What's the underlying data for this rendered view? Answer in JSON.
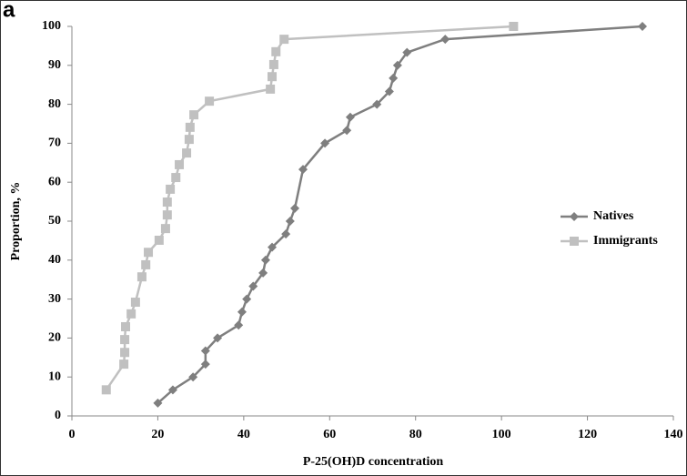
{
  "chart_data": {
    "type": "line",
    "panel_label": "a",
    "x_label": "P-25(OH)D  concentration",
    "y_label": "Proportion, %",
    "xlim": [
      0,
      140
    ],
    "xticks": [
      0,
      20,
      40,
      60,
      80,
      100,
      120,
      140
    ],
    "ylim": [
      0,
      100
    ],
    "yticks": [
      0,
      10,
      20,
      30,
      40,
      50,
      60,
      70,
      80,
      90,
      100
    ],
    "legend": "right",
    "series": [
      {
        "name": "Natives",
        "color": "#7f7f7f",
        "marker": "diamond",
        "x": [
          20,
          23.5,
          28.2,
          31.1,
          31.1,
          33.9,
          38.8,
          39.6,
          40.7,
          42.2,
          44.5,
          45.1,
          46.6,
          49.8,
          50.8,
          51.9,
          53.8,
          58.9,
          64,
          64.8,
          71,
          73.9,
          74.8,
          75.8,
          78,
          86.9,
          132.8
        ],
        "values": [
          3.3,
          6.7,
          10,
          13.3,
          16.7,
          20,
          23.3,
          26.7,
          30,
          33.3,
          36.7,
          40,
          43.3,
          46.7,
          50,
          53.3,
          63.3,
          70,
          73.3,
          76.7,
          80,
          83.3,
          86.7,
          90,
          93.3,
          96.7,
          100
        ]
      },
      {
        "name": "Immigrants",
        "color": "#c0c0c0",
        "marker": "square",
        "x": [
          8,
          12.1,
          12.3,
          12.3,
          12.5,
          13.8,
          14.8,
          16.3,
          17.2,
          17.8,
          20.3,
          21.8,
          22.2,
          22.2,
          22.9,
          24.2,
          25,
          26.7,
          27.3,
          27.5,
          28.4,
          32,
          46.2,
          46.6,
          47,
          47.5,
          49.4,
          102.8
        ],
        "values": [
          6.7,
          13.3,
          16.3,
          19.6,
          22.9,
          26.2,
          29.2,
          35.7,
          38.8,
          42,
          45.1,
          48.1,
          51.6,
          54.9,
          58.2,
          61.2,
          64.5,
          67.5,
          71,
          74.1,
          77.3,
          80.8,
          83.9,
          87.1,
          90.2,
          93.5,
          96.7,
          100
        ]
      }
    ]
  }
}
